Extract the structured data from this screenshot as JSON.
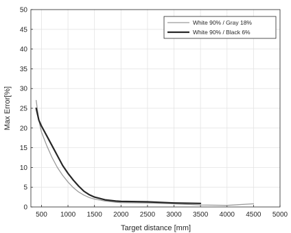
{
  "chart_data": {
    "type": "line",
    "xlabel": "Target distance [mm]",
    "ylabel": "Max Error[%]",
    "xlim": [
      300,
      5000
    ],
    "ylim": [
      0,
      50
    ],
    "xticks": [
      500,
      1000,
      1500,
      2000,
      2500,
      3000,
      3500,
      4000,
      4500,
      5000
    ],
    "yticks": [
      0,
      5,
      10,
      15,
      20,
      25,
      30,
      35,
      40,
      45,
      50
    ],
    "grid": true,
    "legend_position": "top-right",
    "series": [
      {
        "name": "White 90% / Gray 18%",
        "color": "#9a9a9a",
        "width": 1.3,
        "x": [
          400,
          450,
          500,
          600,
          700,
          800,
          900,
          1000,
          1100,
          1200,
          1300,
          1400,
          1500,
          1700,
          1900,
          2000,
          2500,
          3000,
          3500,
          4000,
          4500
        ],
        "y": [
          27,
          22,
          19,
          15.5,
          12.5,
          10,
          8,
          6.3,
          4.9,
          3.8,
          3.0,
          2.4,
          2.0,
          1.5,
          1.2,
          1.1,
          1.0,
          0.8,
          0.5,
          0.4,
          0.8
        ]
      },
      {
        "name": "White 90% / Black 6%",
        "color": "#262626",
        "width": 2.2,
        "x": [
          400,
          450,
          500,
          600,
          700,
          800,
          900,
          1000,
          1100,
          1200,
          1300,
          1400,
          1500,
          1700,
          1900,
          2000,
          2500,
          3000,
          3500
        ],
        "y": [
          25,
          22,
          20.5,
          18,
          15.5,
          13,
          10.5,
          8.5,
          6.8,
          5.3,
          4.0,
          3.1,
          2.5,
          1.8,
          1.5,
          1.4,
          1.3,
          1.0,
          0.9
        ]
      }
    ]
  }
}
